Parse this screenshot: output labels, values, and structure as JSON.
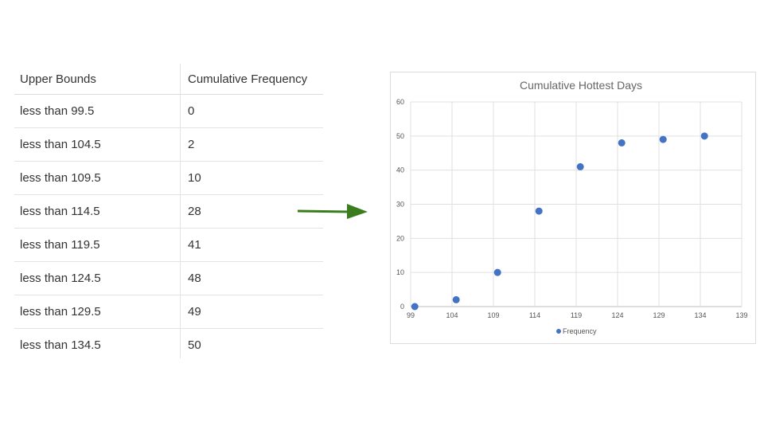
{
  "table": {
    "headers": [
      "Upper Bounds",
      "Cumulative Frequency"
    ],
    "rows": [
      [
        "less than 99.5",
        "0"
      ],
      [
        "less than 104.5",
        "2"
      ],
      [
        "less than 109.5",
        "10"
      ],
      [
        "less than 114.5",
        "28"
      ],
      [
        "less than 119.5",
        "41"
      ],
      [
        "less than 124.5",
        "48"
      ],
      [
        "less than 129.5",
        "49"
      ],
      [
        "less than 134.5",
        "50"
      ]
    ]
  },
  "arrow_color": "#3a7d1e",
  "chart_data": {
    "type": "scatter",
    "title": "Cumulative Hottest Days",
    "xlabel": "",
    "ylabel": "",
    "xlim": [
      99,
      139
    ],
    "ylim": [
      0,
      60
    ],
    "x_ticks": [
      99,
      104,
      109,
      114,
      119,
      124,
      129,
      134,
      139
    ],
    "y_ticks": [
      0,
      10,
      20,
      30,
      40,
      50,
      60
    ],
    "grid": true,
    "legend_position": "bottom",
    "series": [
      {
        "name": "Frequency",
        "color": "#4472c4",
        "points": [
          {
            "x": 99.5,
            "y": 0
          },
          {
            "x": 104.5,
            "y": 2
          },
          {
            "x": 109.5,
            "y": 10
          },
          {
            "x": 114.5,
            "y": 28
          },
          {
            "x": 119.5,
            "y": 41
          },
          {
            "x": 124.5,
            "y": 48
          },
          {
            "x": 129.5,
            "y": 49
          },
          {
            "x": 134.5,
            "y": 50
          }
        ]
      }
    ]
  }
}
